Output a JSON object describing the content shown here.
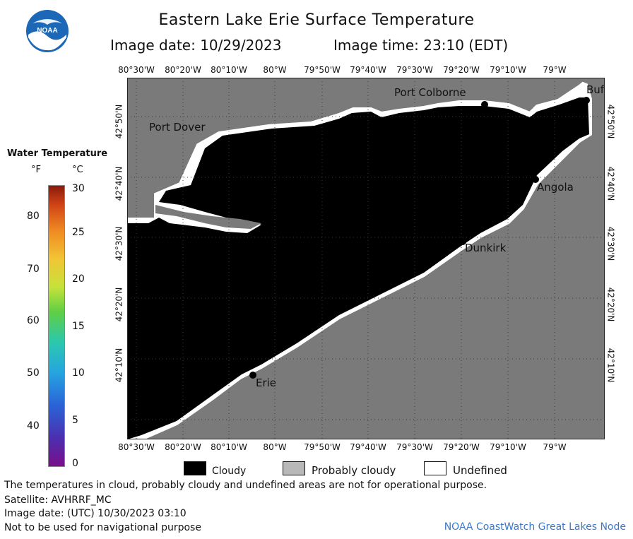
{
  "header": {
    "title": "Eastern Lake Erie Surface Temperature",
    "image_date_label": "Image date: 10/29/2023",
    "image_time_label": "Image time: 23:10 (EDT)",
    "logo_text": "NOAA"
  },
  "map": {
    "longitude_labels": [
      "80°30'W",
      "80°20'W",
      "80°10'W",
      "80°W",
      "79°50'W",
      "79°40'W",
      "79°30'W",
      "79°20'W",
      "79°10'W",
      "79°W"
    ],
    "latitude_labels": [
      "42°50'N",
      "42°40'N",
      "42°30'N",
      "42°20'N",
      "42°10'N"
    ],
    "places": {
      "port_colborne": "Port Colborne",
      "buffalo": "Buf",
      "port_dover": "Port Dover",
      "angola": "Angola",
      "dunkirk": "Dunkirk",
      "erie": "Erie"
    },
    "colors": {
      "land": "#7a7a7a",
      "cloud": "#000000",
      "undefined": "#ffffff",
      "grid": "#444444"
    }
  },
  "colorbar": {
    "title": "Water Temperature",
    "unit_f": "°F",
    "unit_c": "°C",
    "f_ticks": [
      "80",
      "70",
      "60",
      "50",
      "40"
    ],
    "c_ticks": [
      "30",
      "25",
      "20",
      "15",
      "10",
      "5",
      "0"
    ]
  },
  "legend": {
    "cloudy": "Cloudy",
    "probably_cloudy": "Probably cloudy",
    "undefined": "Undefined"
  },
  "footer": {
    "disclaimer": "The temperatures in cloud, probably cloudy and undefined areas are not for operational purpose.",
    "satellite": "Satellite: AVHRRF_MC",
    "utc_date": "Image date: (UTC) 10/30/2023  03:10",
    "nav_warning": "Not to be used for navigational purpose",
    "credit": "NOAA CoastWatch Great Lakes Node"
  }
}
